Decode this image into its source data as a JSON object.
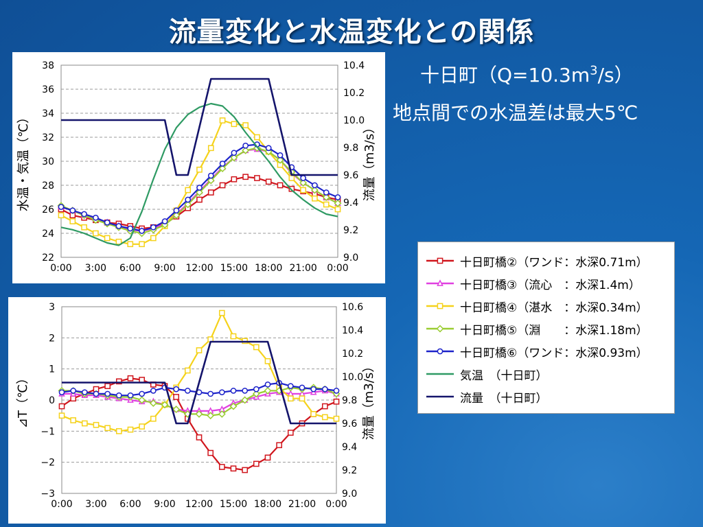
{
  "slide": {
    "title": "流量変化と水温変化との関係",
    "subtitle_1_pre": "十日町（Q=10.3m",
    "subtitle_1_sup": "3",
    "subtitle_1_post": "/s）",
    "subtitle_2": "地点間での水温差は最大5℃"
  },
  "legend": {
    "items": [
      {
        "label": "十日町橋②（ワンド：水深0.71m）",
        "color": "#d0151c",
        "marker": "square"
      },
      {
        "label": "十日町橋③（流心　：水深1.4m）",
        "color": "#e040e0",
        "marker": "triangle"
      },
      {
        "label": "十日町橋④（湛水　：水深0.34m）",
        "color": "#f5d21b",
        "marker": "square"
      },
      {
        "label": "十日町橋⑤（淵　　：水深1.18m）",
        "color": "#9acd32",
        "marker": "diamond"
      },
      {
        "label": "十日町橋⑥（ワンド：水深0.93m）",
        "color": "#1c22c9",
        "marker": "circle"
      },
      {
        "label": "気温　（十日町）",
        "color": "#2e9a63",
        "marker": "none"
      },
      {
        "label": "流量　（十日町）",
        "color": "#14146b",
        "marker": "none"
      }
    ]
  },
  "chart_data": [
    {
      "type": "line",
      "x_ticks": [
        "0:00",
        "3:00",
        "6:00",
        "9:00",
        "12:00",
        "15:00",
        "18:00",
        "21:00",
        "0:00"
      ],
      "x_hours": [
        0,
        1,
        2,
        3,
        4,
        5,
        6,
        7,
        8,
        9,
        10,
        11,
        12,
        13,
        14,
        15,
        16,
        17,
        18,
        19,
        20,
        21,
        22,
        23,
        24
      ],
      "ylabel": "水温・気温（℃）",
      "ylim": [
        22,
        38
      ],
      "y_ticks": [
        "22",
        "24",
        "26",
        "28",
        "30",
        "32",
        "34",
        "36",
        "38"
      ],
      "y2label": "流量（m3/s）",
      "y2lim": [
        9.0,
        10.4
      ],
      "y2_ticks": [
        "9.0",
        "9.2",
        "9.4",
        "9.6",
        "9.8",
        "10.0",
        "10.2",
        "10.4"
      ],
      "series": [
        {
          "name": "十日町橋②",
          "color": "#d0151c",
          "marker": "square",
          "axis": "left",
          "values": [
            26.0,
            25.5,
            25.3,
            25.1,
            24.9,
            24.8,
            24.6,
            24.4,
            24.5,
            24.8,
            25.4,
            26.1,
            26.8,
            27.4,
            28.0,
            28.5,
            28.7,
            28.6,
            28.3,
            28.0,
            27.7,
            27.5,
            27.3,
            27.0,
            26.8
          ]
        },
        {
          "name": "十日町橋③",
          "color": "#e040e0",
          "marker": "triangle",
          "axis": "left",
          "values": [
            26.2,
            25.9,
            25.5,
            25.2,
            24.9,
            24.6,
            24.3,
            24.2,
            24.4,
            24.8,
            25.6,
            26.5,
            27.5,
            28.5,
            29.5,
            30.3,
            30.9,
            31.0,
            30.8,
            30.1,
            29.0,
            28.2,
            27.6,
            27.0,
            26.5
          ]
        },
        {
          "name": "十日町橋④",
          "color": "#f5d21b",
          "marker": "square",
          "axis": "left",
          "values": [
            25.5,
            25.0,
            24.5,
            24.0,
            23.6,
            23.3,
            23.1,
            23.1,
            23.6,
            24.6,
            25.9,
            27.6,
            29.3,
            31.1,
            33.4,
            33.1,
            33.0,
            32.0,
            30.8,
            29.7,
            28.6,
            27.6,
            26.9,
            26.4,
            26.0
          ]
        },
        {
          "name": "十日町橋⑤",
          "color": "#9acd32",
          "marker": "diamond",
          "axis": "left",
          "values": [
            26.3,
            25.9,
            25.5,
            25.1,
            24.8,
            24.5,
            24.2,
            24.0,
            24.3,
            24.7,
            25.5,
            26.4,
            27.4,
            28.4,
            29.4,
            30.3,
            30.9,
            31.1,
            30.8,
            30.1,
            29.1,
            28.2,
            27.6,
            27.0,
            26.5
          ]
        },
        {
          "name": "十日町橋⑥",
          "color": "#1c22c9",
          "marker": "circle",
          "axis": "left",
          "values": [
            26.2,
            25.9,
            25.6,
            25.3,
            24.9,
            24.6,
            24.4,
            24.2,
            24.5,
            25.0,
            25.9,
            26.8,
            27.8,
            28.8,
            29.8,
            30.7,
            31.3,
            31.4,
            31.1,
            30.5,
            29.5,
            28.6,
            28.0,
            27.4,
            27.0
          ]
        },
        {
          "name": "気温",
          "color": "#2e9a63",
          "marker": "none",
          "axis": "left",
          "values": [
            24.5,
            24.3,
            24.0,
            23.6,
            23.2,
            23.0,
            23.6,
            25.8,
            28.5,
            31.0,
            32.8,
            33.9,
            34.5,
            34.8,
            34.6,
            33.7,
            32.4,
            31.2,
            30.0,
            28.7,
            27.6,
            26.8,
            26.1,
            25.6,
            25.4
          ]
        },
        {
          "name": "流量",
          "color": "#14146b",
          "marker": "none",
          "axis": "right",
          "x": [
            0,
            9,
            10,
            11,
            13,
            18,
            20,
            24
          ],
          "values": [
            10.0,
            10.0,
            9.6,
            9.6,
            10.3,
            10.3,
            9.6,
            9.6
          ]
        }
      ]
    },
    {
      "type": "line",
      "x_ticks": [
        "0:00",
        "3:00",
        "6:00",
        "9:00",
        "12:00",
        "15:00",
        "18:00",
        "21:00",
        "0:00"
      ],
      "x_hours": [
        0,
        1,
        2,
        3,
        4,
        5,
        6,
        7,
        8,
        9,
        10,
        11,
        12,
        13,
        14,
        15,
        16,
        17,
        18,
        19,
        20,
        21,
        22,
        23,
        24
      ],
      "ylabel": "⊿T（℃）",
      "ylim": [
        -3,
        3
      ],
      "y_ticks": [
        "−3",
        "−2",
        "−1",
        "0",
        "1",
        "2",
        "3"
      ],
      "y2label": "流量（m3/s）",
      "y2lim": [
        9.0,
        10.6
      ],
      "y2_ticks": [
        "9.0",
        "9.2",
        "9.4",
        "9.6",
        "9.8",
        "10.0",
        "10.2",
        "10.4",
        "10.6"
      ],
      "series": [
        {
          "name": "十日町橋②",
          "color": "#d0151c",
          "marker": "square",
          "axis": "left",
          "values": [
            -0.2,
            0.05,
            0.2,
            0.35,
            0.45,
            0.6,
            0.7,
            0.65,
            0.5,
            0.45,
            0.1,
            -0.6,
            -1.2,
            -1.7,
            -2.15,
            -2.2,
            -2.25,
            -2.05,
            -1.85,
            -1.45,
            -1.05,
            -0.75,
            -0.45,
            -0.2,
            -0.05
          ]
        },
        {
          "name": "十日町橋③",
          "color": "#e040e0",
          "marker": "triangle",
          "axis": "left",
          "values": [
            0.2,
            0.2,
            0.15,
            0.15,
            0.1,
            0.05,
            0.0,
            -0.05,
            -0.05,
            -0.15,
            -0.3,
            -0.35,
            -0.35,
            -0.35,
            -0.3,
            -0.1,
            0.0,
            0.1,
            0.2,
            0.25,
            0.2,
            0.2,
            0.25,
            0.3,
            0.2
          ]
        },
        {
          "name": "十日町橋④",
          "color": "#f5d21b",
          "marker": "square",
          "axis": "left",
          "values": [
            -0.5,
            -0.65,
            -0.75,
            -0.8,
            -0.9,
            -1.0,
            -0.95,
            -0.85,
            -0.6,
            -0.15,
            0.4,
            0.95,
            1.6,
            1.95,
            2.8,
            2.05,
            1.9,
            1.7,
            1.25,
            0.4,
            0.05,
            0.05,
            -0.45,
            -0.55,
            -0.6
          ]
        },
        {
          "name": "十日町橋⑤",
          "color": "#9acd32",
          "marker": "diamond",
          "axis": "left",
          "values": [
            0.3,
            0.3,
            0.2,
            0.2,
            0.15,
            0.1,
            0.1,
            0.0,
            -0.1,
            -0.15,
            -0.3,
            -0.45,
            -0.45,
            -0.5,
            -0.45,
            -0.2,
            0.0,
            0.2,
            0.3,
            0.3,
            0.4,
            0.35,
            0.4,
            0.35,
            0.2
          ]
        },
        {
          "name": "十日町橋⑥",
          "color": "#1c22c9",
          "marker": "circle",
          "axis": "left",
          "values": [
            0.25,
            0.3,
            0.25,
            0.2,
            0.2,
            0.15,
            0.15,
            0.2,
            0.3,
            0.4,
            0.35,
            0.3,
            0.25,
            0.2,
            0.25,
            0.3,
            0.3,
            0.35,
            0.5,
            0.55,
            0.45,
            0.4,
            0.35,
            0.35,
            0.3
          ]
        },
        {
          "name": "流量",
          "color": "#14146b",
          "marker": "none",
          "axis": "right",
          "x": [
            0,
            9,
            10,
            11,
            13,
            18,
            20,
            24
          ],
          "values": [
            9.95,
            9.95,
            9.6,
            9.6,
            10.3,
            10.3,
            9.6,
            9.6
          ]
        }
      ]
    }
  ]
}
